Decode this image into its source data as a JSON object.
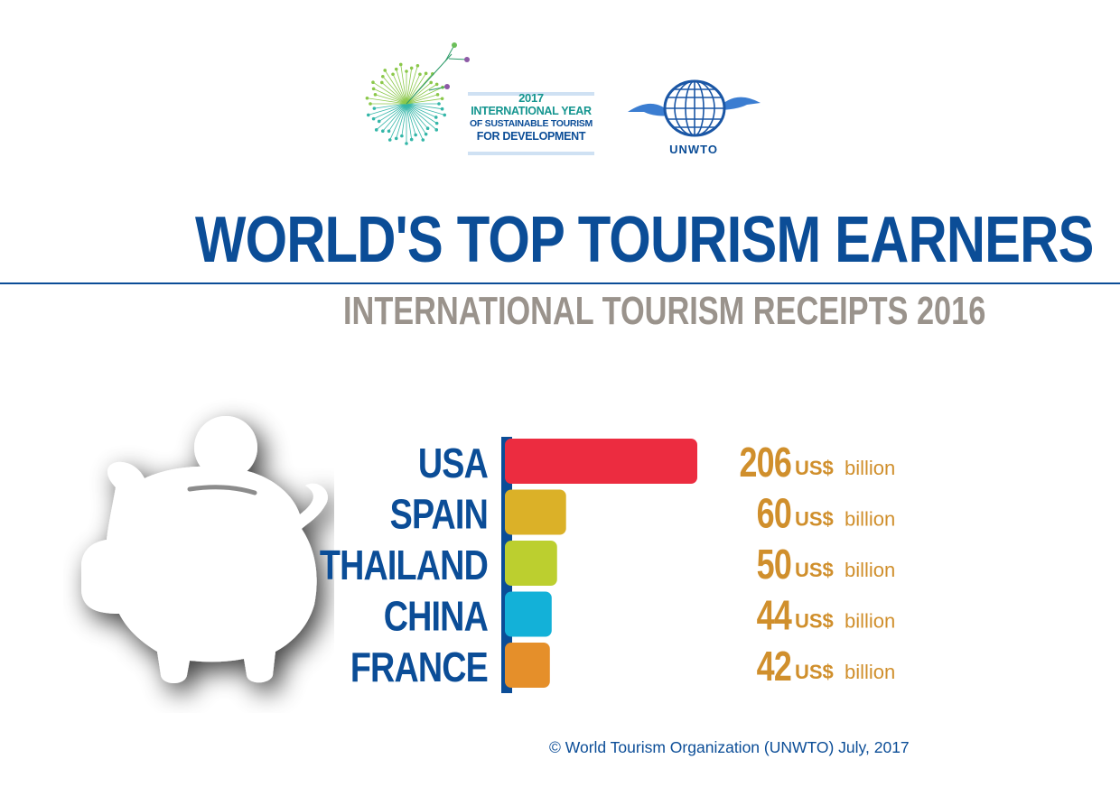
{
  "logos": {
    "year_line1": "2017",
    "year_line2": "INTERNATIONAL YEAR",
    "year_line3": "OF SUSTAINABLE TOURISM",
    "year_line4": "FOR DEVELOPMENT",
    "org_name": "UNWTO"
  },
  "colors": {
    "title_blue": "#0b4d97",
    "subtitle_gray": "#9a938c",
    "value_gold": "#d08f2c",
    "axis_blue": "#0b4d97",
    "teal": "#14958f",
    "piggy_shadow": "#9a9a9a"
  },
  "chart_data": {
    "type": "bar",
    "orientation": "horizontal",
    "title": "WORLD'S TOP TOURISM EARNERS",
    "subtitle": "INTERNATIONAL TOURISM RECEIPTS 2016",
    "categories": [
      "USA",
      "SPAIN",
      "THAILAND",
      "CHINA",
      "FRANCE"
    ],
    "values": [
      206,
      60,
      50,
      44,
      42
    ],
    "value_unit_currency": "US$",
    "value_unit_scale": "billion",
    "bar_colors": [
      "#ec2c40",
      "#dbb128",
      "#bccf2f",
      "#13b1d8",
      "#e58f2a"
    ],
    "xlim": [
      0,
      206
    ],
    "grid": false,
    "legend": "none"
  },
  "footer": {
    "copyright": "© World Tourism Organization (UNWTO) July, 2017"
  },
  "icons": {
    "piggy": "piggy-bank-icon",
    "coin": "coin-icon",
    "dandelion": "dandelion-icon",
    "globe": "globe-icon"
  }
}
